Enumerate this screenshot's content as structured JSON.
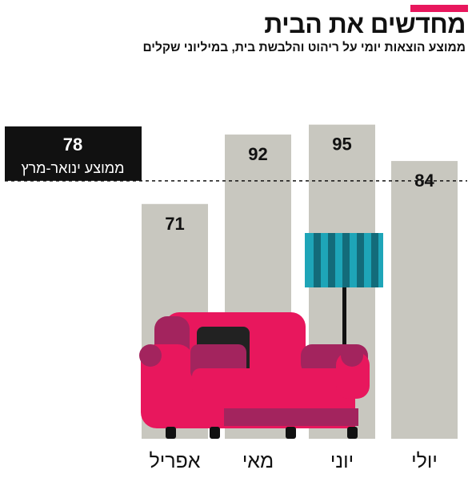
{
  "title": "מחדשים את הבית",
  "subtitle": "ממוצע הוצאות יומי על ריהוט והלבשת בית, במיליוני שקלים",
  "colors": {
    "accent": "#e8175d",
    "bar": "#c8c7bf",
    "text": "#111111",
    "average_box": "#111111",
    "sofa": "#e8175d",
    "sofa_dark": "#a3245e",
    "lamp_shade": "#1ea5b8",
    "lamp_shade_dark": "#136b7a"
  },
  "chart_data": {
    "type": "bar",
    "categories": [
      "אפריל",
      "מאי",
      "יוני",
      "יולי"
    ],
    "values": [
      71,
      92,
      95,
      84
    ],
    "value_labels": [
      "71",
      "92",
      "95",
      "84"
    ],
    "title": "מחדשים את הבית",
    "subtitle": "ממוצע הוצאות יומי על ריהוט והלבשת בית, במיליוני שקלים",
    "xlabel": "",
    "ylabel": "",
    "ylim": [
      0,
      100
    ],
    "grid": false,
    "reference_line": {
      "value": 78,
      "value_label": "78",
      "label": "ממוצע ינואר-מרץ",
      "style": "dashed"
    },
    "illustrations": [
      "sofa",
      "floor-lamp"
    ]
  }
}
